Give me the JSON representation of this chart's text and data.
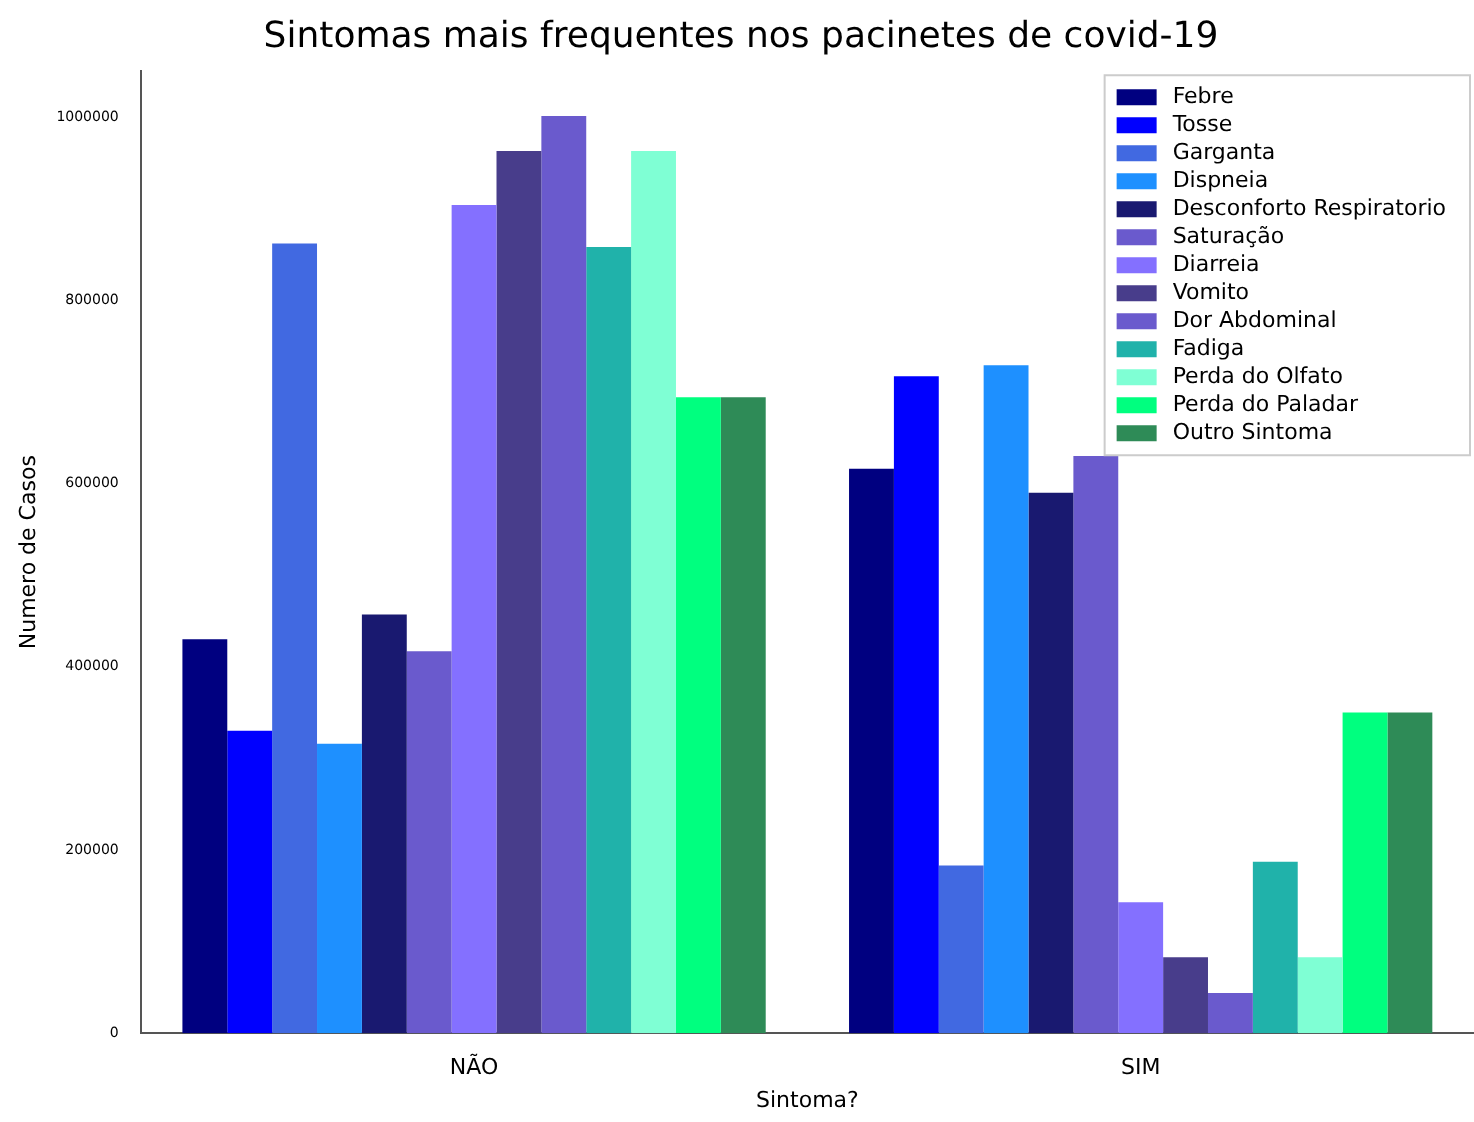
{
  "chart_data": {
    "type": "bar",
    "title": "Sintomas mais frequentes nos pacinetes de covid-19",
    "xlabel": "Sintoma?",
    "ylabel": "Numero de Casos",
    "categories": [
      "NÃO",
      "SIM"
    ],
    "ylim": [
      0,
      1050000
    ],
    "yticks": [
      0,
      200000,
      400000,
      600000,
      800000,
      1000000
    ],
    "grid": false,
    "legend": "top right",
    "series": [
      {
        "name": "Febre",
        "color": "#000080",
        "values": [
          430000,
          616000
        ]
      },
      {
        "name": "Tosse",
        "color": "#0000ff",
        "values": [
          330000,
          717000
        ]
      },
      {
        "name": "Garganta",
        "color": "#4169e1",
        "values": [
          862000,
          183000
        ]
      },
      {
        "name": "Dispneia",
        "color": "#1e90ff",
        "values": [
          316000,
          729000
        ]
      },
      {
        "name": "Desconforto Respiratorio",
        "color": "#191970",
        "values": [
          457000,
          590000
        ]
      },
      {
        "name": "Saturação",
        "color": "#6a5acd",
        "values": [
          417000,
          630000
        ]
      },
      {
        "name": "Diarreia",
        "color": "#8470ff",
        "values": [
          904000,
          143000
        ]
      },
      {
        "name": "Vomito",
        "color": "#483d8b",
        "values": [
          963000,
          83000
        ]
      },
      {
        "name": "Dor Abdominal",
        "color": "#6a5acd",
        "values": [
          1001000,
          44000
        ]
      },
      {
        "name": "Fadiga",
        "color": "#20b2aa",
        "values": [
          858000,
          187000
        ]
      },
      {
        "name": "Perda do Olfato",
        "color": "#7fffd4",
        "values": [
          963000,
          83000
        ]
      },
      {
        "name": "Perda do Paladar",
        "color": "#00ff7f",
        "values": [
          694000,
          350000
        ]
      },
      {
        "name": "Outro Sintoma",
        "color": "#2e8b57",
        "values": [
          694000,
          350000
        ]
      }
    ]
  }
}
